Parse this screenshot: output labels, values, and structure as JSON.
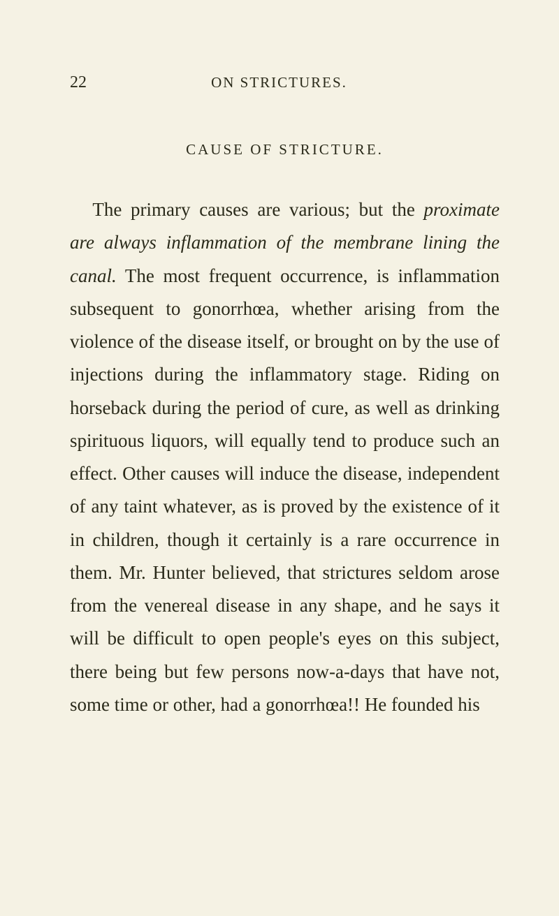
{
  "page": {
    "number": "22",
    "running_head": "ON STRICTURES.",
    "section_title": "CAUSE OF STRICTURE.",
    "paragraph_parts": {
      "p1": "The primary causes are various; but the ",
      "p2_italic": "proximate are always inflammation of the membrane lining the canal.",
      "p3": " The most frequent occurrence, is inflammation subsequent to gonorrhœa, whether arising from the violence of the disease itself, or brought on by the use of injections during the inflammatory stage. Riding on horseback during the period of cure, as well as drinking spirituous liquors, will equally tend to produce such an effect. Other causes will induce the disease, independent of any taint whatever, as is proved by the existence of it in children, though it certainly is a rare occurrence in them. Mr. Hunter believed, that strictures seldom arose from the venereal disease in any shape, and he says it will be difficult to open people's eyes on this subject, there being but few persons now-a-days that have not, some time or other, had a gonorrhœa!! He founded his"
    }
  },
  "styles": {
    "background_color": "#f5f2e4",
    "text_color": "#2a2a1a",
    "body_font_size": 27,
    "body_line_height": 1.75,
    "header_font_size": 21,
    "page_number_font_size": 24,
    "section_title_font_size": 21
  }
}
